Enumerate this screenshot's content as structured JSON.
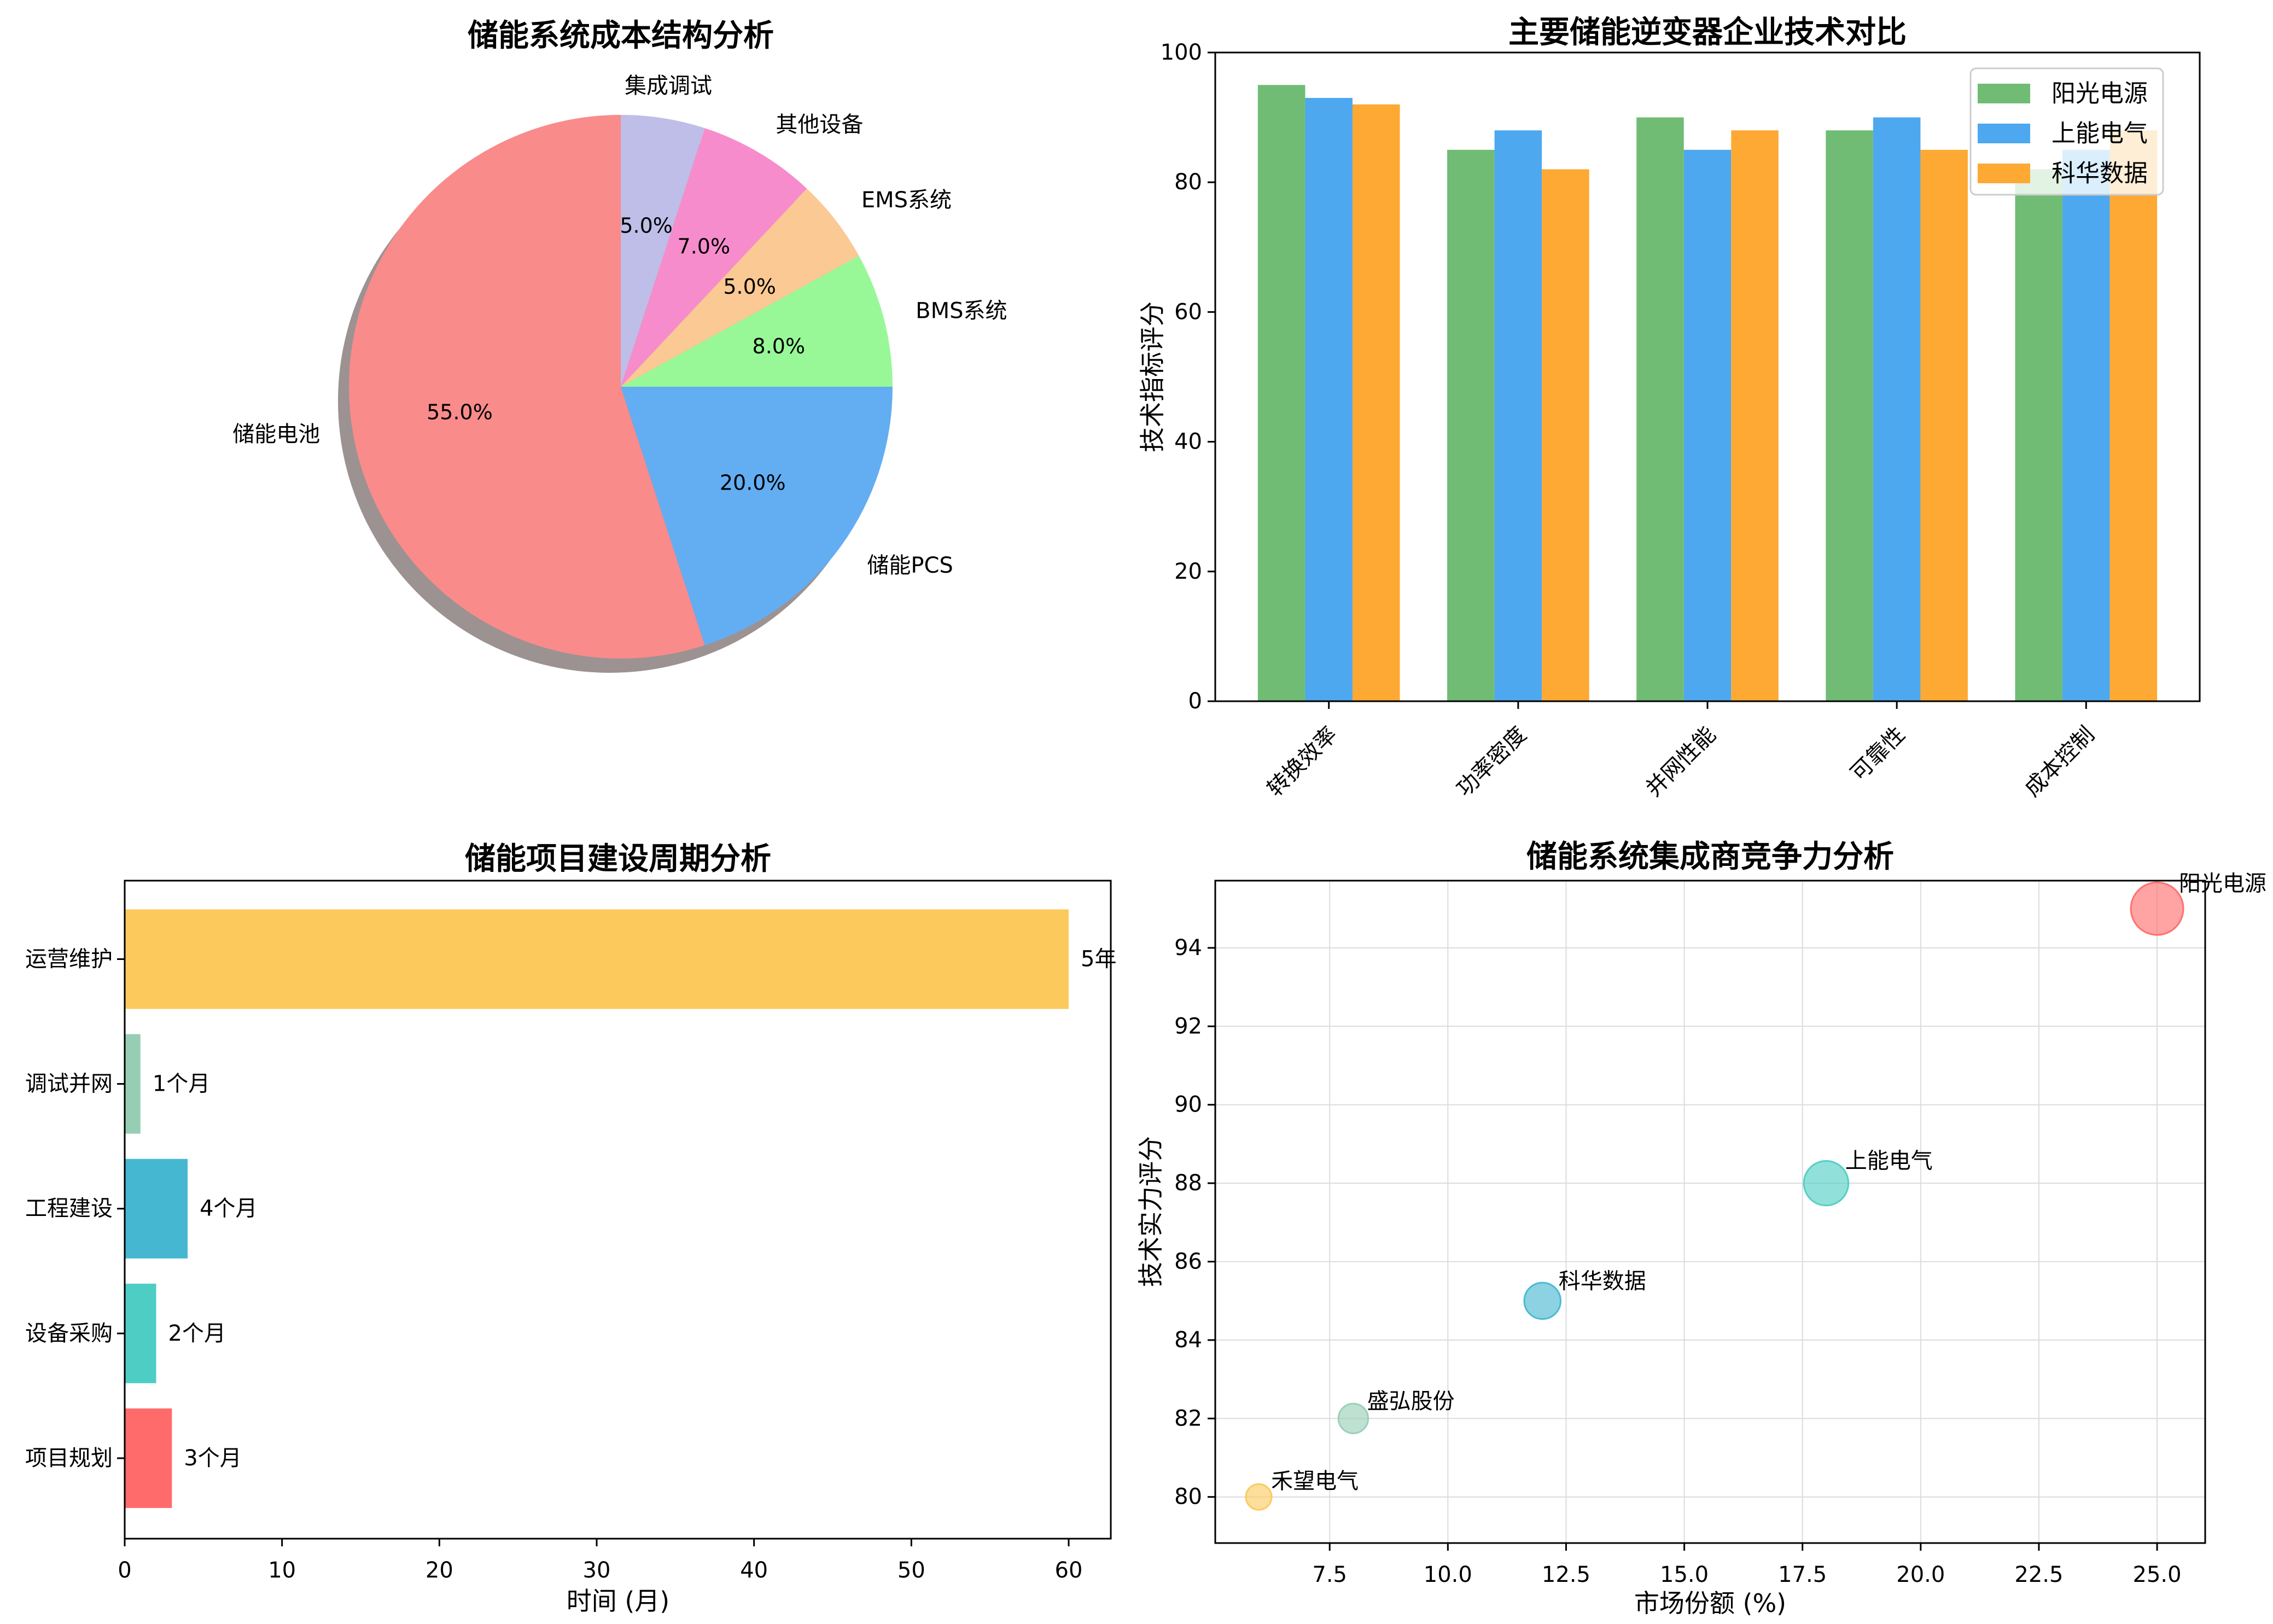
{
  "figure": {
    "background": "#ffffff"
  },
  "chart_data": [
    {
      "type": "pie",
      "title": "储能系统成本结构分析",
      "labels": [
        "储能电池",
        "储能PCS",
        "BMS系统",
        "EMS系统",
        "其他设备",
        "集成调试"
      ],
      "values": [
        55.0,
        20.0,
        8.0,
        5.0,
        7.0,
        5.0
      ],
      "pct_labels": [
        "55.0%",
        "20.0%",
        "8.0%",
        "5.0%",
        "7.0%",
        "5.0%"
      ],
      "colors": [
        "#F98B8B",
        "#63ADF2",
        "#98F898",
        "#FBC993",
        "#F78CCD",
        "#BEBEE8"
      ],
      "start_angle": 90,
      "counterclock": true,
      "shadow": true,
      "shadow_color": "#9C9292"
    },
    {
      "type": "bar",
      "title": "主要储能逆变器企业技术对比",
      "ylabel": "技术指标评分",
      "categories": [
        "转换效率",
        "功率密度",
        "并网性能",
        "可靠性",
        "成本控制"
      ],
      "series": [
        {
          "name": "阳光电源",
          "color": "#70BC74",
          "values": [
            95,
            85,
            90,
            88,
            82
          ]
        },
        {
          "name": "上能电气",
          "color": "#4DA8F0",
          "values": [
            93,
            88,
            85,
            90,
            85
          ]
        },
        {
          "name": "科华数据",
          "color": "#FDA933",
          "values": [
            92,
            82,
            88,
            85,
            88
          ]
        }
      ],
      "ylim": [
        0,
        100
      ],
      "yticks": [
        0,
        20,
        40,
        60,
        80,
        100
      ],
      "legend_position": "upper right",
      "grid": false
    },
    {
      "type": "barh",
      "title": "储能项目建设周期分析",
      "xlabel": "时间 (月)",
      "categories": [
        "运营维护",
        "调试并网",
        "工程建设",
        "设备采购",
        "项目规划"
      ],
      "values": [
        60,
        1,
        4,
        2,
        3
      ],
      "value_labels": [
        "5年",
        "1个月",
        "4个月",
        "2个月",
        "3个月"
      ],
      "colors": [
        "#FBC95C",
        "#96CEB4",
        "#45B7D1",
        "#4ECDC4",
        "#FF6B6B"
      ],
      "xticks": [
        0,
        10,
        20,
        30,
        40,
        50,
        60
      ],
      "xlim": [
        0,
        62.7
      ],
      "grid": false
    },
    {
      "type": "scatter",
      "title": "储能系统集成商竞争力分析",
      "xlabel": "市场份额 (%)",
      "ylabel": "技术实力评分",
      "points": [
        {
          "label": "阳光电源",
          "x": 25,
          "y": 95,
          "color": "#FF6B6B"
        },
        {
          "label": "上能电气",
          "x": 18,
          "y": 88,
          "color": "#4ECDC4"
        },
        {
          "label": "科华数据",
          "x": 12,
          "y": 85,
          "color": "#45B7D1"
        },
        {
          "label": "盛弘股份",
          "x": 8,
          "y": 82,
          "color": "#96CEB4"
        },
        {
          "label": "禾望电气",
          "x": 6,
          "y": 80,
          "color": "#FBC95C"
        }
      ],
      "xticks": [
        7.5,
        10.0,
        12.5,
        15.0,
        17.5,
        20.0,
        22.5,
        25.0
      ],
      "yticks": [
        80,
        82,
        84,
        86,
        88,
        90,
        92,
        94
      ],
      "xlim": [
        5.07,
        26.0
      ],
      "ylim": [
        78.8,
        95.73
      ],
      "grid": true,
      "grid_color": "#DCDCDC"
    }
  ]
}
